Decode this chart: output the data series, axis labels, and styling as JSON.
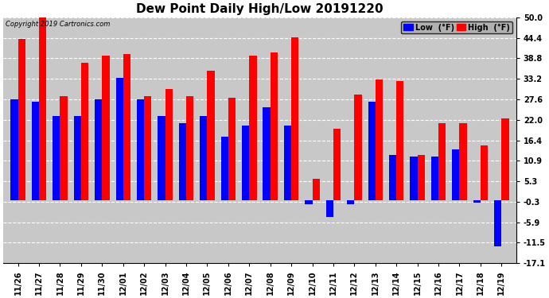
{
  "title": "Dew Point Daily High/Low 20191220",
  "copyright": "Copyright 2019 Cartronics.com",
  "dates": [
    "11/26",
    "11/27",
    "11/28",
    "11/29",
    "11/30",
    "12/01",
    "12/02",
    "12/03",
    "12/04",
    "12/05",
    "12/06",
    "12/07",
    "12/08",
    "12/09",
    "12/10",
    "12/11",
    "12/12",
    "12/13",
    "12/14",
    "12/15",
    "12/16",
    "12/17",
    "12/18",
    "12/19"
  ],
  "high": [
    44.0,
    50.0,
    28.5,
    37.5,
    39.5,
    40.0,
    28.5,
    30.5,
    28.5,
    35.5,
    28.0,
    39.5,
    40.5,
    44.5,
    6.0,
    19.5,
    29.0,
    33.0,
    32.5,
    12.5,
    21.0,
    21.0,
    15.0,
    22.5
  ],
  "low": [
    27.5,
    27.0,
    23.0,
    23.0,
    27.5,
    33.5,
    27.5,
    23.0,
    21.0,
    23.0,
    17.5,
    20.5,
    25.5,
    20.5,
    -1.0,
    -4.5,
    -1.0,
    27.0,
    12.5,
    12.0,
    12.0,
    14.0,
    -0.5,
    -12.5
  ],
  "high_color": "#ff0000",
  "low_color": "#0000ff",
  "bg_color": "#ffffff",
  "plot_bg_color": "#c8c8c8",
  "grid_color": "#ffffff",
  "ylim": [
    -17.1,
    50.0
  ],
  "yticks": [
    -17.1,
    -11.5,
    -5.9,
    -0.3,
    5.3,
    10.9,
    16.4,
    22.0,
    27.6,
    33.2,
    38.8,
    44.4,
    50.0
  ],
  "ytick_labels": [
    "-17.1",
    "-11.5",
    "-5.9",
    "-0.3",
    "5.3",
    "10.9",
    "16.4",
    "22.0",
    "27.6",
    "33.2",
    "38.8",
    "44.4",
    "50.0"
  ]
}
